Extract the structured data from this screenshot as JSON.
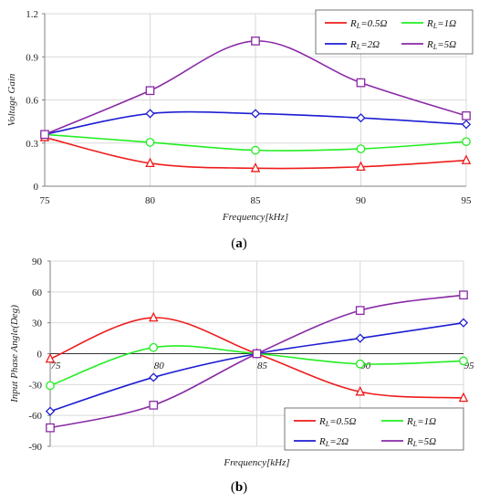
{
  "colors": {
    "red": "#ee1c1c",
    "green": "#22ee22",
    "blue": "#1e1ed2",
    "purple": "#8a2aa6",
    "grid": "#d9d9d9",
    "axis": "#808080"
  },
  "chart_data": [
    {
      "type": "line",
      "xlabel": "Frequency[kHz]",
      "ylabel": "Voltage Gain",
      "xlim": [
        75,
        95
      ],
      "ylim": [
        0,
        1.2
      ],
      "xticks": [
        "75",
        "80",
        "85",
        "90",
        "95"
      ],
      "yticks": [
        "0",
        "0.3",
        "0.6",
        "0.9",
        "1.2"
      ],
      "grid": "horizontal",
      "legend_position": "top-right",
      "caption": {
        "open": "(",
        "letter": "a",
        "close": ")"
      },
      "x": [
        75,
        80,
        85,
        90,
        95
      ],
      "series": [
        {
          "name": "R_L=0.5Ω",
          "label": {
            "r": "R",
            "sub": "L",
            "value": "=0.5Ω"
          },
          "color": "#ee1c1c",
          "marker": "triangle",
          "values": [
            0.34,
            0.16,
            0.125,
            0.135,
            0.18
          ]
        },
        {
          "name": "R_L=1Ω",
          "label": {
            "r": "R",
            "sub": "L",
            "value": "=1Ω"
          },
          "color": "#22ee22",
          "marker": "circle",
          "values": [
            0.36,
            0.305,
            0.25,
            0.26,
            0.31
          ]
        },
        {
          "name": "R_L=2Ω",
          "label": {
            "r": "R",
            "sub": "L",
            "value": "=2Ω"
          },
          "color": "#1e1ed2",
          "marker": "diamond",
          "values": [
            0.36,
            0.505,
            0.505,
            0.475,
            0.43
          ]
        },
        {
          "name": "R_L=5Ω",
          "label": {
            "r": "R",
            "sub": "L",
            "value": "=5Ω"
          },
          "color": "#8a2aa6",
          "marker": "square",
          "values": [
            0.36,
            0.665,
            1.01,
            0.72,
            0.49
          ]
        }
      ]
    },
    {
      "type": "line",
      "xlabel": "Frequency[kHz]",
      "ylabel": "Input Phase Angle(Deg)",
      "xlim": [
        75,
        95
      ],
      "ylim": [
        -90,
        90
      ],
      "xticks": [
        "75",
        "80",
        "85",
        "90",
        "95"
      ],
      "yticks": [
        "-90",
        "-60",
        "-30",
        "0",
        "30",
        "60",
        "90"
      ],
      "grid": "horizontal",
      "legend_position": "bottom-right",
      "caption": {
        "open": "(",
        "letter": "b",
        "close": ")"
      },
      "x": [
        75,
        80,
        85,
        90,
        95
      ],
      "series": [
        {
          "name": "R_L=0.5Ω",
          "label": {
            "r": "R",
            "sub": "L",
            "value": "=0.5Ω"
          },
          "color": "#ee1c1c",
          "marker": "triangle",
          "values": [
            -5,
            35,
            0,
            -37,
            -43
          ]
        },
        {
          "name": "R_L=1Ω",
          "label": {
            "r": "R",
            "sub": "L",
            "value": "=1Ω"
          },
          "color": "#22ee22",
          "marker": "circle",
          "values": [
            -31,
            6,
            0,
            -10,
            -7
          ]
        },
        {
          "name": "R_L=2Ω",
          "label": {
            "r": "R",
            "sub": "L",
            "value": "=2Ω"
          },
          "color": "#1e1ed2",
          "marker": "diamond",
          "values": [
            -56,
            -23,
            0,
            15,
            30
          ]
        },
        {
          "name": "R_L=5Ω",
          "label": {
            "r": "R",
            "sub": "L",
            "value": "=5Ω"
          },
          "color": "#8a2aa6",
          "marker": "square",
          "values": [
            -72,
            -50,
            0,
            42,
            57
          ]
        }
      ]
    }
  ]
}
